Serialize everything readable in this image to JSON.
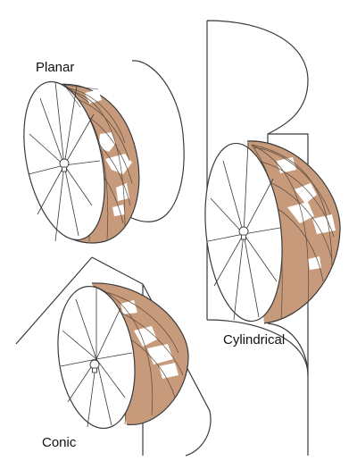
{
  "labels": {
    "planar": "Planar",
    "conic": "Conic",
    "cylindrical": "Cylindrical"
  },
  "colors": {
    "land": "#c69a7a",
    "ocean": "#ffffff",
    "line": "#3a3a3a",
    "grid": "#5a4a3e"
  },
  "icons": [
    "light-bulb-icon"
  ]
}
